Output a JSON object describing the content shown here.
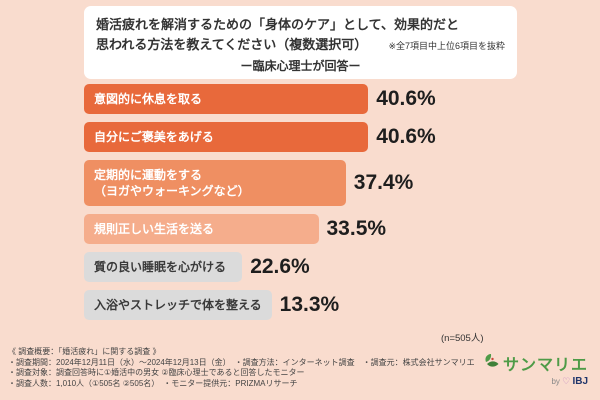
{
  "page": {
    "bg_color": "#F9DCCE"
  },
  "header": {
    "title_line1": "婚活疲れを解消するための「身体のケア」として、効果的だと",
    "title_line2": "思われる方法を教えてください（複数選択可）",
    "note": "※全7項目中上位6項目を抜粋",
    "subtitle": "ー臨床心理士が回答ー"
  },
  "chart_data": {
    "type": "bar",
    "orientation": "horizontal",
    "title": "婚活疲れを解消するための「身体のケア」として、効果的だと思われる方法（複数選択可）",
    "categories": [
      "意図的に休息を取る",
      "自分にご褒美をあげる",
      "定期的に運動をする（ヨガやウォーキングなど）",
      "規則正しい生活を送る",
      "質の良い睡眠を心がける",
      "入浴やストレッチで体を整える"
    ],
    "display_labels": [
      "意図的に休息を取る",
      "自分にご褒美をあげる",
      "定期的に運動をする\n（ヨガやウォーキングなど）",
      "規則正しい生活を送る",
      "質の良い睡眠を心がける",
      "入浴やストレッチで体を整える"
    ],
    "values": [
      40.6,
      40.6,
      37.4,
      33.5,
      22.6,
      13.3
    ],
    "value_labels": [
      "40.6%",
      "40.6%",
      "37.4%",
      "33.5%",
      "22.6%",
      "13.3%"
    ],
    "bar_colors": [
      "#E8693B",
      "#E8693B",
      "#EF8F62",
      "#F5AD8C",
      "#DBDBDB",
      "#DBDBDB"
    ],
    "xlim": [
      0,
      45
    ],
    "grid": false,
    "legend": "none",
    "sample_note": "(n=505人)"
  },
  "footer": {
    "line1": "《 調査概要：「婚活疲れ」に関する調査 》",
    "line2": "・調査期間：2024年12月11日（水）～2024年12月13日（金）　・調査方法：インターネット調査　・調査元：株式会社サンマリエ",
    "line3": "・調査対象：調査回答時に①婚活中の男女 ②臨床心理士であると回答したモニター",
    "line4": "・調査人数：1,010人（①505名 ②505名）　・モニター提供元：PRIZMAリサーチ"
  },
  "logo": {
    "brand": "サンマリエ",
    "by": "by",
    "ibj": "IBJ",
    "brand_color": "#4E9B47",
    "ibj_color": "#20356B"
  }
}
